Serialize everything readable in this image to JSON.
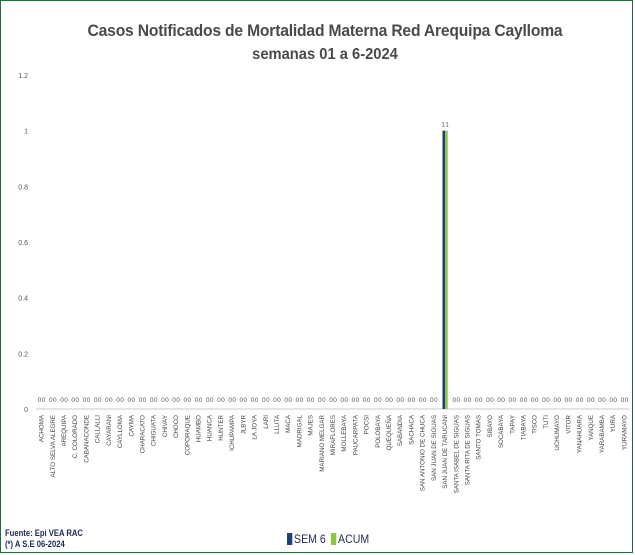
{
  "header": {
    "title": "Casos  Notificados de Mortalidad Materna Red Arequipa Caylloma",
    "subtitle": "semanas 01 a 6-2024"
  },
  "footer": {
    "source_line1": "Fuente: Epi VEA RAC",
    "source_line2": "(*) A S.E  06-2024"
  },
  "chart_data": {
    "type": "bar",
    "title": "Casos  Notificados de Mortalidad Materna Red Arequipa Caylloma",
    "subtitle": "semanas 01 a 6-2024",
    "xlabel": "",
    "ylabel": "",
    "ylim": [
      0,
      1.2
    ],
    "yticks": [
      "0",
      "0.2",
      "0.4",
      "0.6",
      "0.8",
      "1",
      "1.2"
    ],
    "grid": false,
    "legend_position": "bottom",
    "categories": [
      "ACHOMA",
      "ALTO SELVA ALEGRE",
      "AREQUIPA",
      "C. COLORADO",
      "CABANACONDE",
      "CALLALLI",
      "CAYARANI",
      "CAYLLOMA",
      "CAYMA",
      "CHARACATO",
      "CHIGUATA",
      "CHIVAY",
      "CHOCO",
      "COPORAQUE",
      "HUAMBO",
      "HUANCA",
      "HUNTER",
      "ICHUPAMPA",
      "JLBYR",
      "LA JOYA",
      "LARI",
      "LLUTA",
      "MACA",
      "MADRIGAL",
      "MAJES",
      "MARIANO MELGAR",
      "MIRAFLORES",
      "MOLLEBAYA",
      "PAUCARPATA",
      "POCSI",
      "POLOBAYA",
      "QUEQUEÑA",
      "SABANDIA",
      "SACHACA",
      "SAN ANTONIO DE CHUCA",
      "SAN JUAN DE SIGUAS",
      "SAN JUAN DE TARUCANI",
      "SANTA ISABEL DE SIGUAS",
      "SANTA RITA DE SIGUAS",
      "SANTO TOMAS",
      "SIBAYO",
      "SOCABAYA",
      "TAPAY",
      "TIABAYA",
      "TISCO",
      "TUTI",
      "UCHUMAYO",
      "VITOR",
      "YANAHUARA",
      "YANQUE",
      "YARABAMBA",
      "YURA",
      "YURAMAYO"
    ],
    "series": [
      {
        "name": "SEM 6",
        "color": "#1f3f7a",
        "values": [
          0,
          0,
          0,
          0,
          0,
          0,
          0,
          0,
          0,
          0,
          0,
          0,
          0,
          0,
          0,
          0,
          0,
          0,
          0,
          0,
          0,
          0,
          0,
          0,
          0,
          0,
          0,
          0,
          0,
          0,
          0,
          0,
          0,
          0,
          0,
          0,
          1,
          0,
          0,
          0,
          0,
          0,
          0,
          0,
          0,
          0,
          0,
          0,
          0,
          0,
          0,
          0,
          0
        ]
      },
      {
        "name": "ACUM",
        "color": "#8dc63f",
        "values": [
          0,
          0,
          0,
          0,
          0,
          0,
          0,
          0,
          0,
          0,
          0,
          0,
          0,
          0,
          0,
          0,
          0,
          0,
          0,
          0,
          0,
          0,
          0,
          0,
          0,
          0,
          0,
          0,
          0,
          0,
          0,
          0,
          0,
          0,
          0,
          0,
          1,
          0,
          0,
          0,
          0,
          0,
          0,
          0,
          0,
          0,
          0,
          0,
          0,
          0,
          0,
          0,
          0
        ]
      }
    ]
  }
}
